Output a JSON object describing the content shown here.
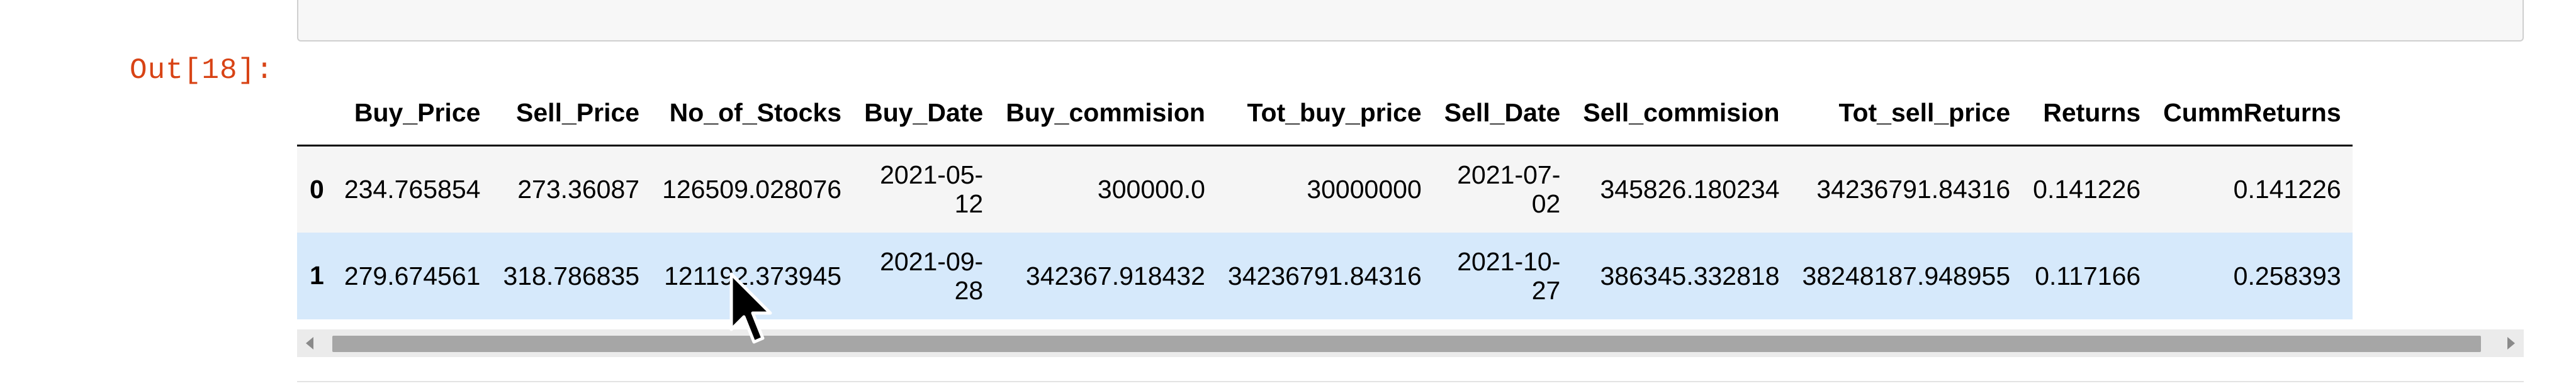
{
  "prompt": "Out[18]:",
  "table": {
    "columns": [
      "",
      "Buy_Price",
      "Sell_Price",
      "No_of_Stocks",
      "Buy_Date",
      "Buy_commision",
      "Tot_buy_price",
      "Sell_Date",
      "Sell_commision",
      "Tot_sell_price",
      "Returns",
      "CummReturns"
    ],
    "rows": [
      {
        "index": "0",
        "Buy_Price": "234.765854",
        "Sell_Price": "273.36087",
        "No_of_Stocks": "126509.028076",
        "Buy_Date_line1": "2021-05-",
        "Buy_Date_line2": "12",
        "Buy_commision": "300000.0",
        "Tot_buy_price": "30000000",
        "Sell_Date_line1": "2021-07-",
        "Sell_Date_line2": "02",
        "Sell_commision": "345826.180234",
        "Tot_sell_price": "34236791.84316",
        "Returns": "0.141226",
        "CummReturns": "0.141226"
      },
      {
        "index": "1",
        "Buy_Price": "279.674561",
        "Sell_Price": "318.786835",
        "No_of_Stocks": "121192.373945",
        "Buy_Date_line1": "2021-09-",
        "Buy_Date_line2": "28",
        "Buy_commision": "342367.918432",
        "Tot_buy_price": "34236791.84316",
        "Sell_Date_line1": "2021-10-",
        "Sell_Date_line2": "27",
        "Sell_commision": "386345.332818",
        "Tot_sell_price": "38248187.948955",
        "Returns": "0.117166",
        "CummReturns": "0.258393"
      }
    ]
  },
  "icons": {
    "cursor": "mouse-pointer-icon",
    "scroll_left": "scroll-left-arrow-icon",
    "scroll_right": "scroll-right-arrow-icon"
  }
}
